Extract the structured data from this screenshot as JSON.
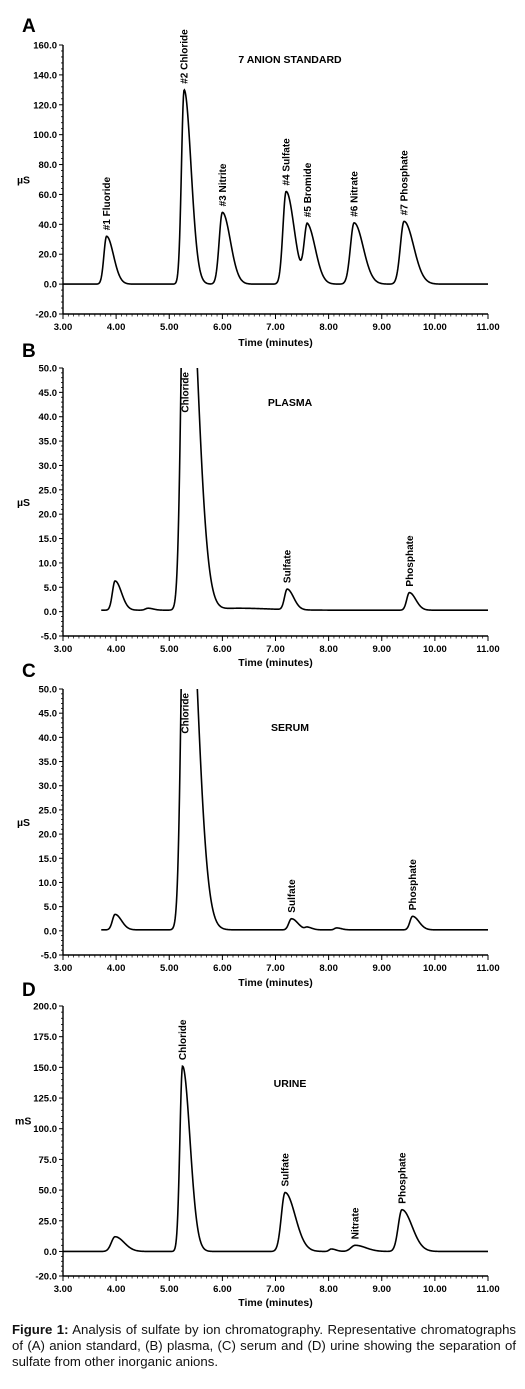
{
  "figure_caption": {
    "label": "Figure 1:",
    "text": "Analysis of sulfate by ion chromatography. Representative chromatographs of (A) anion standard, (B) plasma, (C) serum and (D) urine showing the separation of sulfate from other inorganic anions."
  },
  "chart_data": [
    {
      "type": "line",
      "panel_letter": "A",
      "title": "7 ANION STANDARD",
      "xlabel": "Time (minutes)",
      "ylabel": "µS",
      "xlim": [
        3.0,
        11.0
      ],
      "ylim": [
        -20.0,
        160.0
      ],
      "x_ticks": [
        "3.00",
        "4.00",
        "5.00",
        "6.00",
        "7.00",
        "8.00",
        "9.00",
        "10.00",
        "11.00"
      ],
      "y_ticks": [
        "-20.0",
        "0.0",
        "20.0",
        "40.0",
        "60.0",
        "80.0",
        "100.0",
        "120.0",
        "140.0",
        "160.0"
      ],
      "baseline": 0.0,
      "peaks": [
        {
          "label": "#1 Fluoride",
          "t": 3.82,
          "h": 32.0,
          "w": 0.05,
          "tail": 0.08
        },
        {
          "label": "#2 Chloride",
          "t": 5.28,
          "h": 130.0,
          "w": 0.05,
          "tail": 0.08
        },
        {
          "label": "#3 Nitrite",
          "t": 6.0,
          "h": 48.0,
          "w": 0.06,
          "tail": 0.09
        },
        {
          "label": "#4 Sulfate",
          "t": 7.2,
          "h": 62.0,
          "w": 0.06,
          "tail": 0.09
        },
        {
          "label": "#5 Bromide",
          "t": 7.6,
          "h": 39.0,
          "w": 0.06,
          "tail": 0.09
        },
        {
          "label": "#6 Nitrate",
          "t": 8.48,
          "h": 41.0,
          "w": 0.07,
          "tail": 0.1
        },
        {
          "label": "#7 Phosphate",
          "t": 9.42,
          "h": 42.0,
          "w": 0.07,
          "tail": 0.11
        }
      ]
    },
    {
      "type": "line",
      "panel_letter": "B",
      "title": "PLASMA",
      "xlabel": "Time (minutes)",
      "ylabel": "µS",
      "xlim": [
        3.0,
        11.0
      ],
      "ylim": [
        -5.0,
        50.0
      ],
      "x_ticks": [
        "3.00",
        "4.00",
        "5.00",
        "6.00",
        "7.00",
        "8.00",
        "9.00",
        "10.00",
        "11.00"
      ],
      "y_ticks": [
        "-5.0",
        "0.0",
        "5.0",
        "10.0",
        "15.0",
        "20.0",
        "25.0",
        "30.0",
        "35.0",
        "40.0",
        "45.0",
        "50.0"
      ],
      "trace_start": 3.72,
      "baseline": 0.3,
      "peaks": [
        {
          "label": "",
          "t": 3.98,
          "h": 6.0,
          "w": 0.05,
          "tail": 0.07
        },
        {
          "label": "",
          "t": 4.6,
          "h": 0.4,
          "w": 0.05,
          "tail": 0.05
        },
        {
          "label": "Chloride",
          "t": 5.3,
          "h": 90.0,
          "w": 0.07,
          "tail": 0.14
        },
        {
          "label": "",
          "t": 6.3,
          "h": 0.4,
          "w": 0.3,
          "tail": 0.3
        },
        {
          "label": "Sulfate",
          "t": 7.22,
          "h": 4.2,
          "w": 0.05,
          "tail": 0.07
        },
        {
          "label": "Phosphate",
          "t": 9.52,
          "h": 3.6,
          "w": 0.05,
          "tail": 0.07
        }
      ]
    },
    {
      "type": "line",
      "panel_letter": "C",
      "title": "SERUM",
      "xlabel": "Time (minutes)",
      "ylabel": "µS",
      "xlim": [
        3.0,
        11.0
      ],
      "ylim": [
        -5.0,
        50.0
      ],
      "x_ticks": [
        "3.00",
        "4.00",
        "5.00",
        "6.00",
        "7.00",
        "8.00",
        "9.00",
        "10.00",
        "11.00"
      ],
      "y_ticks": [
        "-5.0",
        "0.0",
        "5.0",
        "10.0",
        "15.0",
        "20.0",
        "25.0",
        "30.0",
        "35.0",
        "40.0",
        "45.0",
        "50.0"
      ],
      "trace_start": 3.72,
      "baseline": 0.2,
      "peaks": [
        {
          "label": "",
          "t": 3.98,
          "h": 3.2,
          "w": 0.05,
          "tail": 0.07
        },
        {
          "label": "Chloride",
          "t": 5.3,
          "h": 90.0,
          "w": 0.07,
          "tail": 0.14
        },
        {
          "label": "Sulfate",
          "t": 7.3,
          "h": 2.3,
          "w": 0.05,
          "tail": 0.07
        },
        {
          "label": "",
          "t": 7.6,
          "h": 0.5,
          "w": 0.04,
          "tail": 0.05
        },
        {
          "label": "",
          "t": 8.15,
          "h": 0.4,
          "w": 0.04,
          "tail": 0.05
        },
        {
          "label": "Phosphate",
          "t": 9.58,
          "h": 2.8,
          "w": 0.05,
          "tail": 0.07
        }
      ]
    },
    {
      "type": "line",
      "panel_letter": "D",
      "title": "URINE",
      "xlabel": "Time (minutes)",
      "ylabel": "mS",
      "xlim": [
        3.0,
        11.0
      ],
      "ylim": [
        -20.0,
        200.0
      ],
      "x_ticks": [
        "3.00",
        "4.00",
        "5.00",
        "6.00",
        "7.00",
        "8.00",
        "9.00",
        "10.00",
        "11.00"
      ],
      "y_ticks": [
        "-20.0",
        "0.0",
        "25.0",
        "50.0",
        "75.0",
        "100.0",
        "125.0",
        "150.0",
        "175.0",
        "200.0"
      ],
      "baseline": 0.0,
      "peaks": [
        {
          "label": "",
          "t": 3.98,
          "h": 12.0,
          "w": 0.07,
          "tail": 0.1
        },
        {
          "label": "Chloride",
          "t": 5.25,
          "h": 151.0,
          "w": 0.05,
          "tail": 0.09
        },
        {
          "label": "Sulfate",
          "t": 7.18,
          "h": 48.0,
          "w": 0.07,
          "tail": 0.12
        },
        {
          "label": "",
          "t": 8.05,
          "h": 2.0,
          "w": 0.04,
          "tail": 0.05
        },
        {
          "label": "Nitrate",
          "t": 8.5,
          "h": 5.0,
          "w": 0.08,
          "tail": 0.12
        },
        {
          "label": "Phosphate",
          "t": 9.38,
          "h": 34.0,
          "w": 0.07,
          "tail": 0.12
        }
      ]
    }
  ]
}
